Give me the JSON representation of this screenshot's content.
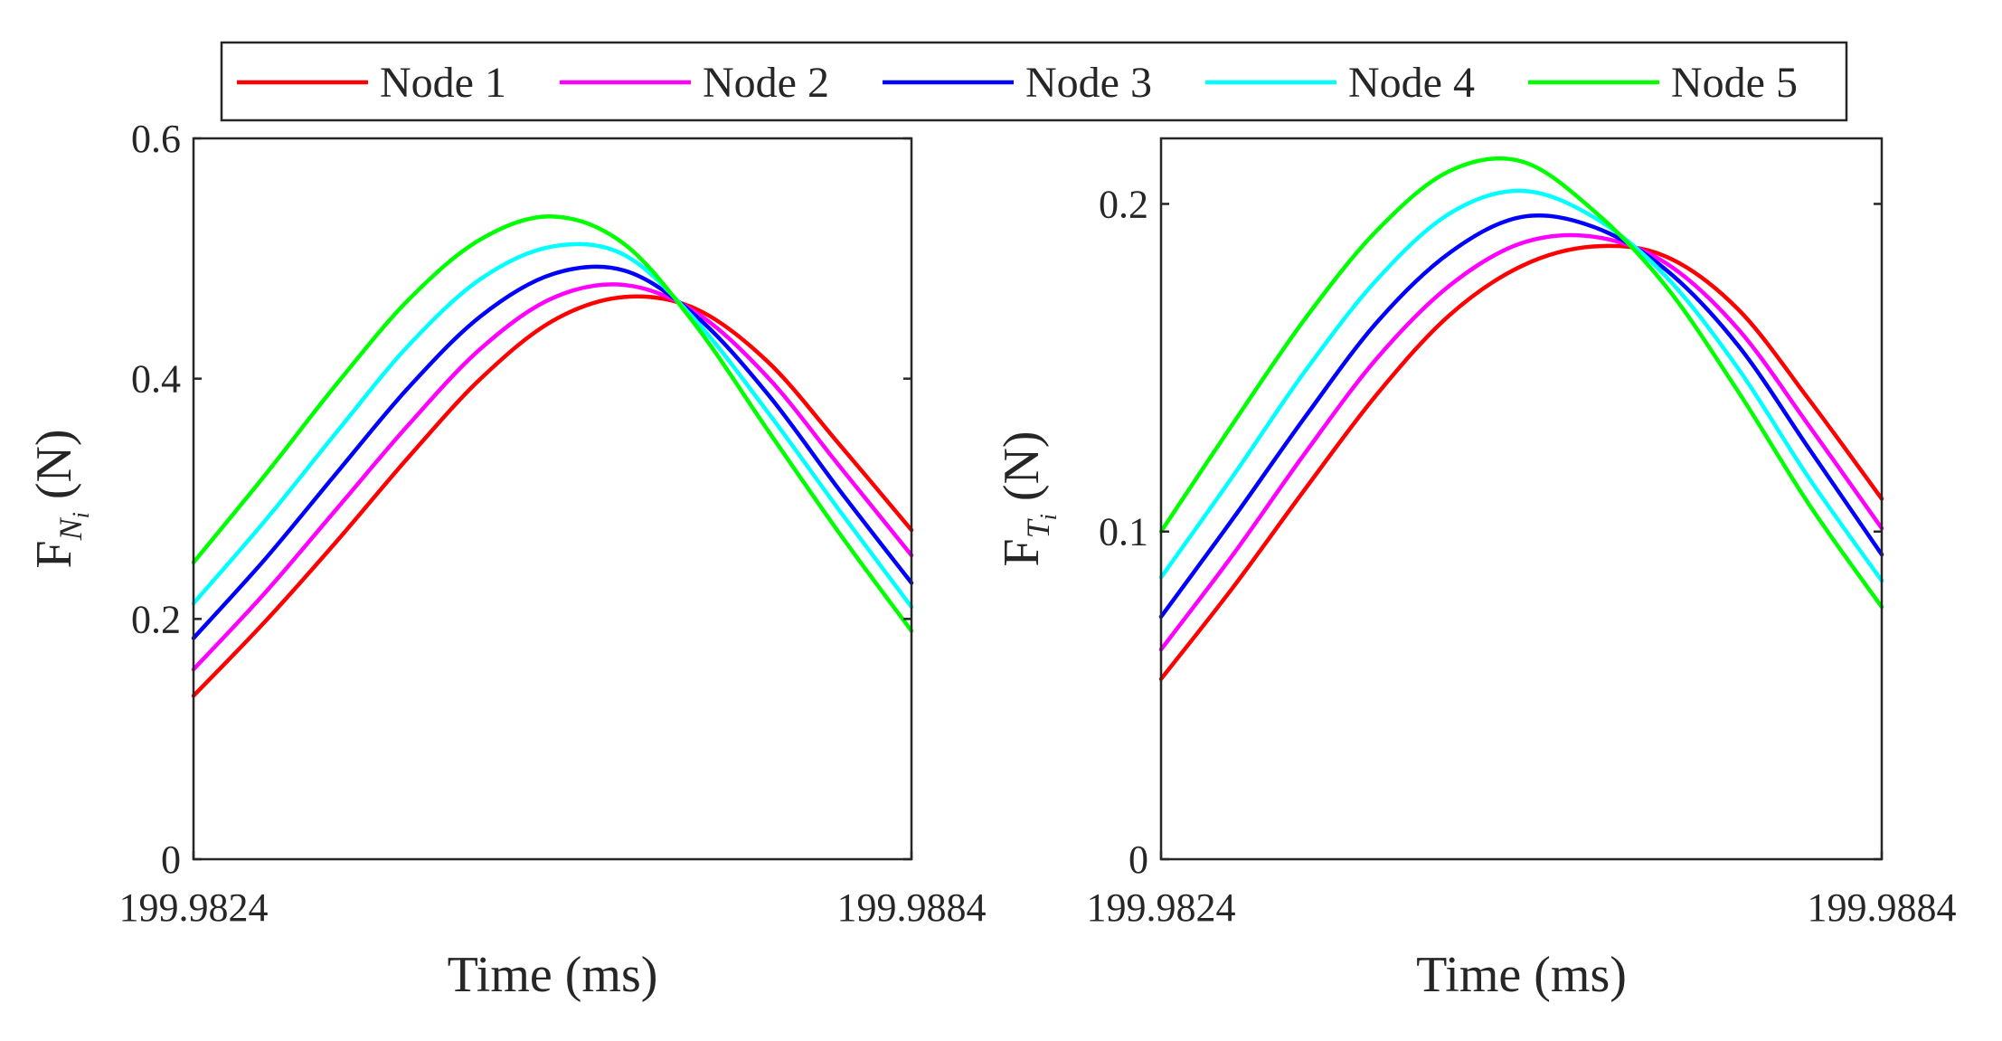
{
  "legend": {
    "entries": [
      {
        "label": "Node 1",
        "color": "#ff0000"
      },
      {
        "label": "Node 2",
        "color": "#ff00ff"
      },
      {
        "label": "Node 3",
        "color": "#0000ff"
      },
      {
        "label": "Node 4",
        "color": "#00ffff"
      },
      {
        "label": "Node 5",
        "color": "#00ff00"
      }
    ]
  },
  "chart_data": [
    {
      "type": "line",
      "title": "",
      "xlabel": "Time (ms)",
      "ylabel_main": "F",
      "ylabel_sub": "N",
      "ylabel_subsub": "i",
      "ylabel_unit": "(N)",
      "xlim": [
        199.9824,
        199.9884
      ],
      "ylim": [
        0,
        0.6
      ],
      "xticks": [
        "199.9824",
        "199.9884"
      ],
      "xtick_values": [
        199.9824,
        199.9884
      ],
      "yticks": [
        "0",
        "0.2",
        "0.4",
        "0.6"
      ],
      "ytick_values": [
        0,
        0.2,
        0.4,
        0.6
      ],
      "x": [
        199.9824,
        199.983,
        199.9836,
        199.9842,
        199.9848,
        199.9854,
        199.986,
        199.9866,
        199.9872,
        199.9878,
        199.9884
      ],
      "series": [
        {
          "name": "Node 1",
          "color": "#ff0000",
          "values": [
            0.136,
            0.198,
            0.265,
            0.335,
            0.4,
            0.448,
            0.468,
            0.458,
            0.414,
            0.345,
            0.274
          ]
        },
        {
          "name": "Node 2",
          "color": "#ff00ff",
          "values": [
            0.158,
            0.222,
            0.292,
            0.362,
            0.425,
            0.467,
            0.478,
            0.455,
            0.401,
            0.327,
            0.253
          ]
        },
        {
          "name": "Node 3",
          "color": "#0000ff",
          "values": [
            0.184,
            0.25,
            0.322,
            0.393,
            0.452,
            0.487,
            0.49,
            0.452,
            0.387,
            0.307,
            0.23
          ]
        },
        {
          "name": "Node 4",
          "color": "#00ffff",
          "values": [
            0.213,
            0.282,
            0.356,
            0.428,
            0.483,
            0.51,
            0.503,
            0.448,
            0.372,
            0.29,
            0.21
          ]
        },
        {
          "name": "Node 5",
          "color": "#00ff00",
          "values": [
            0.247,
            0.32,
            0.396,
            0.466,
            0.516,
            0.535,
            0.512,
            0.444,
            0.357,
            0.271,
            0.19
          ]
        }
      ]
    },
    {
      "type": "line",
      "title": "",
      "xlabel": "Time (ms)",
      "ylabel_main": "F",
      "ylabel_sub": "T",
      "ylabel_subsub": "i",
      "ylabel_unit": "(N)",
      "xlim": [
        199.9824,
        199.9884
      ],
      "ylim": [
        0,
        0.22
      ],
      "xticks": [
        "199.9824",
        "199.9884"
      ],
      "xtick_values": [
        199.9824,
        199.9884
      ],
      "yticks": [
        "0",
        "0.1",
        "0.2"
      ],
      "ytick_values": [
        0,
        0.1,
        0.2
      ],
      "x": [
        199.9824,
        199.983,
        199.9836,
        199.9842,
        199.9848,
        199.9854,
        199.986,
        199.9866,
        199.9872,
        199.9878,
        199.9884
      ],
      "series": [
        {
          "name": "Node 1",
          "color": "#ff0000",
          "values": [
            0.055,
            0.083,
            0.113,
            0.142,
            0.166,
            0.181,
            0.187,
            0.184,
            0.168,
            0.14,
            0.11
          ]
        },
        {
          "name": "Node 2",
          "color": "#ff00ff",
          "values": [
            0.064,
            0.093,
            0.124,
            0.153,
            0.175,
            0.188,
            0.19,
            0.182,
            0.162,
            0.132,
            0.101
          ]
        },
        {
          "name": "Node 3",
          "color": "#0000ff",
          "values": [
            0.074,
            0.104,
            0.135,
            0.164,
            0.185,
            0.196,
            0.193,
            0.18,
            0.157,
            0.125,
            0.093
          ]
        },
        {
          "name": "Node 4",
          "color": "#00ffff",
          "values": [
            0.086,
            0.117,
            0.149,
            0.177,
            0.197,
            0.204,
            0.196,
            0.178,
            0.15,
            0.116,
            0.085
          ]
        },
        {
          "name": "Node 5",
          "color": "#00ff00",
          "values": [
            0.1,
            0.133,
            0.165,
            0.192,
            0.21,
            0.213,
            0.198,
            0.175,
            0.143,
            0.108,
            0.077
          ]
        }
      ]
    }
  ]
}
